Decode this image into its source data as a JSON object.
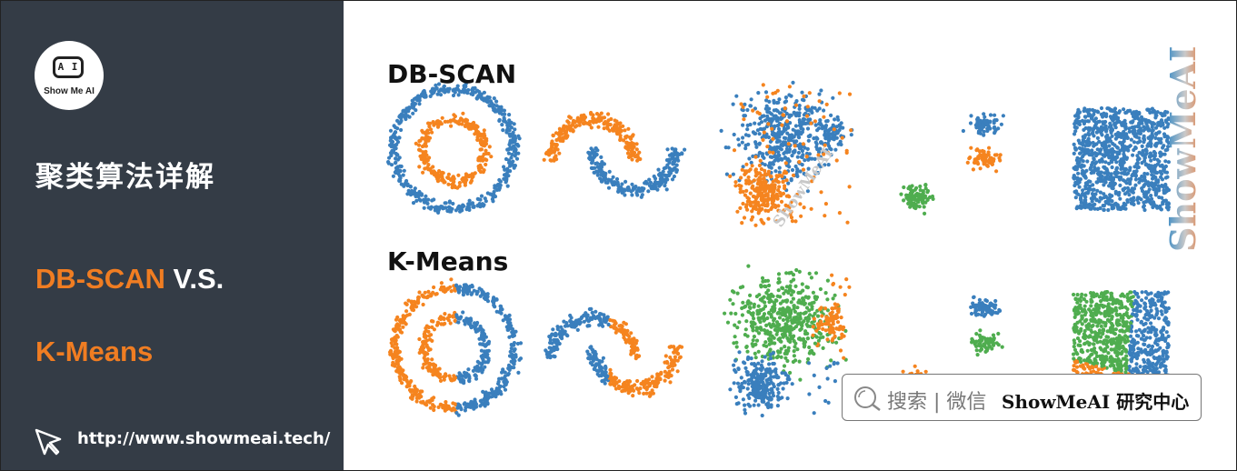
{
  "sidebar": {
    "logo_text": "Show Me AI",
    "logo_mark": "A I",
    "title": "聚类算法详解",
    "subtitle_part1": "DB-SCAN",
    "subtitle_part2": " V.S.",
    "subtitle_line2": "K-Means",
    "url": "http://www.showmeai.tech/"
  },
  "main": {
    "row1_label": "DB-SCAN",
    "row2_label": "K-Means",
    "watermark_vertical": "ShowMeAI",
    "watermark_diagonal": "ShowMeAI"
  },
  "search_box": {
    "label": "搜索 | 微信",
    "brand": "ShowMeAI 研究中心"
  },
  "colors": {
    "sidebar_bg": "#343c46",
    "accent_orange": "#f07d22",
    "cluster_blue": "#3a7fbd",
    "cluster_orange": "#f5841f",
    "cluster_green": "#4fad4f"
  },
  "icons": [
    "logo-icon",
    "cursor-icon",
    "search-icon"
  ]
}
